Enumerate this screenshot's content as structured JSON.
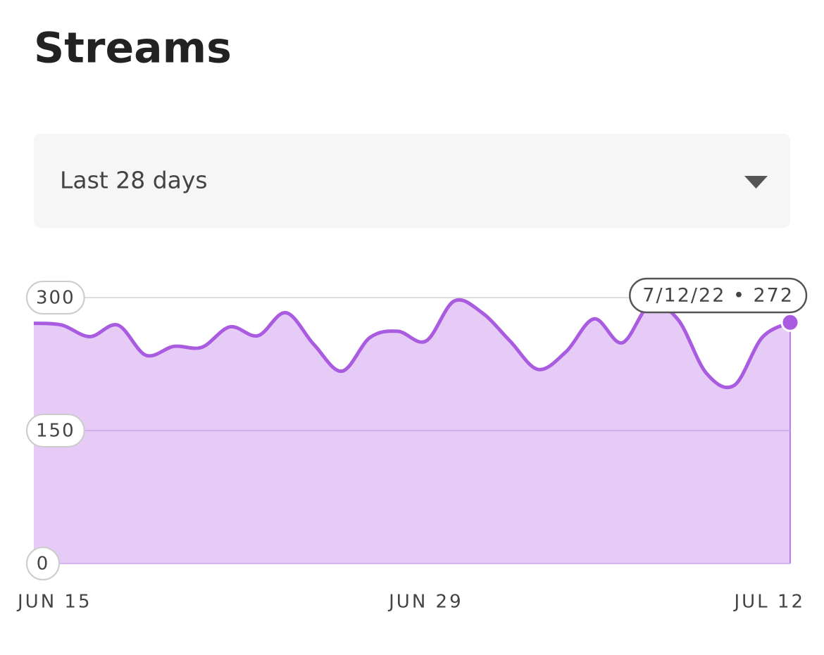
{
  "header": {
    "title": "Streams"
  },
  "dropdown": {
    "label": "Last 28 days"
  },
  "chart_data": {
    "type": "area",
    "categories": [
      "JUN 15",
      null,
      null,
      null,
      null,
      null,
      null,
      null,
      null,
      null,
      null,
      null,
      null,
      null,
      "JUN 29",
      null,
      null,
      null,
      null,
      null,
      null,
      null,
      null,
      null,
      null,
      null,
      null,
      "JUL 12"
    ],
    "series": [
      {
        "name": "Streams",
        "color": "#a95ce0",
        "fill": "#e6cbf7",
        "values": [
          271,
          269,
          256,
          269,
          235,
          245,
          244,
          267,
          257,
          283,
          247,
          217,
          255,
          262,
          251,
          296,
          283,
          251,
          219,
          239,
          276,
          249,
          292,
          275,
          215,
          201,
          255,
          272
        ]
      }
    ],
    "ylim": [
      0,
      300
    ],
    "yticks": [
      0,
      150,
      300
    ],
    "grid": true,
    "annotation": "7/12/22 • 272"
  }
}
